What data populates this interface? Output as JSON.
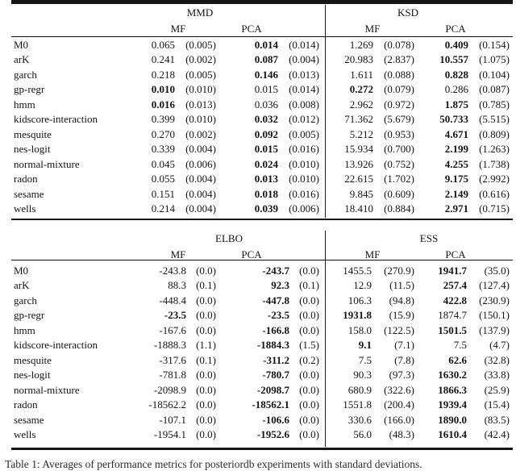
{
  "page": {
    "caption_clipped": "Table 1: Averages of performance metrics for posteriordb experiments with standard deviations."
  },
  "tables": [
    {
      "groups": [
        "MMD",
        "KSD"
      ],
      "subheaders": [
        "MF",
        "PCA",
        "MF",
        "PCA"
      ],
      "rows": [
        {
          "label": "M0",
          "cells": [
            {
              "v": "0.065",
              "s": "(0.005)",
              "b": false
            },
            {
              "v": "0.014",
              "s": "(0.014)",
              "b": true
            },
            {
              "v": "1.269",
              "s": "(0.078)",
              "b": false
            },
            {
              "v": "0.409",
              "s": "(0.154)",
              "b": true
            }
          ]
        },
        {
          "label": "arK",
          "cells": [
            {
              "v": "0.241",
              "s": "(0.002)",
              "b": false
            },
            {
              "v": "0.087",
              "s": "(0.004)",
              "b": true
            },
            {
              "v": "20.983",
              "s": "(2.837)",
              "b": false
            },
            {
              "v": "10.557",
              "s": "(1.075)",
              "b": true
            }
          ]
        },
        {
          "label": "garch",
          "cells": [
            {
              "v": "0.218",
              "s": "(0.005)",
              "b": false
            },
            {
              "v": "0.146",
              "s": "(0.013)",
              "b": true
            },
            {
              "v": "1.611",
              "s": "(0.088)",
              "b": false
            },
            {
              "v": "0.828",
              "s": "(0.104)",
              "b": true
            }
          ]
        },
        {
          "label": "gp-regr",
          "cells": [
            {
              "v": "0.010",
              "s": "(0.010)",
              "b": true
            },
            {
              "v": "0.015",
              "s": "(0.014)",
              "b": false
            },
            {
              "v": "0.272",
              "s": "(0.079)",
              "b": true
            },
            {
              "v": "0.286",
              "s": "(0.087)",
              "b": false
            }
          ]
        },
        {
          "label": "hmm",
          "cells": [
            {
              "v": "0.016",
              "s": "(0.013)",
              "b": true
            },
            {
              "v": "0.036",
              "s": "(0.008)",
              "b": false
            },
            {
              "v": "2.962",
              "s": "(0.972)",
              "b": false
            },
            {
              "v": "1.875",
              "s": "(0.785)",
              "b": true
            }
          ]
        },
        {
          "label": "kidscore-interaction",
          "cells": [
            {
              "v": "0.399",
              "s": "(0.010)",
              "b": false
            },
            {
              "v": "0.032",
              "s": "(0.012)",
              "b": true
            },
            {
              "v": "71.362",
              "s": "(5.679)",
              "b": false
            },
            {
              "v": "50.733",
              "s": "(5.515)",
              "b": true
            }
          ]
        },
        {
          "label": "mesquite",
          "cells": [
            {
              "v": "0.270",
              "s": "(0.002)",
              "b": false
            },
            {
              "v": "0.092",
              "s": "(0.005)",
              "b": true
            },
            {
              "v": "5.212",
              "s": "(0.953)",
              "b": false
            },
            {
              "v": "4.671",
              "s": "(0.809)",
              "b": true
            }
          ]
        },
        {
          "label": "nes-logit",
          "cells": [
            {
              "v": "0.339",
              "s": "(0.004)",
              "b": false
            },
            {
              "v": "0.015",
              "s": "(0.016)",
              "b": true
            },
            {
              "v": "15.934",
              "s": "(0.700)",
              "b": false
            },
            {
              "v": "2.199",
              "s": "(1.263)",
              "b": true
            }
          ]
        },
        {
          "label": "normal-mixture",
          "cells": [
            {
              "v": "0.045",
              "s": "(0.006)",
              "b": false
            },
            {
              "v": "0.024",
              "s": "(0.010)",
              "b": true
            },
            {
              "v": "13.926",
              "s": "(0.752)",
              "b": false
            },
            {
              "v": "4.255",
              "s": "(1.738)",
              "b": true
            }
          ]
        },
        {
          "label": "radon",
          "cells": [
            {
              "v": "0.055",
              "s": "(0.004)",
              "b": false
            },
            {
              "v": "0.013",
              "s": "(0.010)",
              "b": true
            },
            {
              "v": "22.615",
              "s": "(1.702)",
              "b": false
            },
            {
              "v": "9.175",
              "s": "(2.992)",
              "b": true
            }
          ]
        },
        {
          "label": "sesame",
          "cells": [
            {
              "v": "0.151",
              "s": "(0.004)",
              "b": false
            },
            {
              "v": "0.018",
              "s": "(0.016)",
              "b": true
            },
            {
              "v": "9.845",
              "s": "(0.609)",
              "b": false
            },
            {
              "v": "2.149",
              "s": "(0.616)",
              "b": true
            }
          ]
        },
        {
          "label": "wells",
          "cells": [
            {
              "v": "0.214",
              "s": "(0.004)",
              "b": false
            },
            {
              "v": "0.039",
              "s": "(0.006)",
              "b": true
            },
            {
              "v": "18.410",
              "s": "(0.884)",
              "b": false
            },
            {
              "v": "2.971",
              "s": "(0.715)",
              "b": true
            }
          ]
        }
      ]
    },
    {
      "groups": [
        "ELBO",
        "ESS"
      ],
      "subheaders": [
        "MF",
        "PCA",
        "MF",
        "PCA"
      ],
      "rows": [
        {
          "label": "M0",
          "cells": [
            {
              "v": "-243.8",
              "s": "(0.0)",
              "b": false
            },
            {
              "v": "-243.7",
              "s": "(0.0)",
              "b": true
            },
            {
              "v": "1455.5",
              "s": "(270.9)",
              "b": false
            },
            {
              "v": "1941.7",
              "s": "(35.0)",
              "b": true
            }
          ]
        },
        {
          "label": "arK",
          "cells": [
            {
              "v": "88.3",
              "s": "(0.1)",
              "b": false
            },
            {
              "v": "92.3",
              "s": "(0.1)",
              "b": true
            },
            {
              "v": "12.9",
              "s": "(11.5)",
              "b": false
            },
            {
              "v": "257.4",
              "s": "(127.4)",
              "b": true
            }
          ]
        },
        {
          "label": "garch",
          "cells": [
            {
              "v": "-448.4",
              "s": "(0.0)",
              "b": false
            },
            {
              "v": "-447.8",
              "s": "(0.0)",
              "b": true
            },
            {
              "v": "106.3",
              "s": "(94.8)",
              "b": false
            },
            {
              "v": "422.8",
              "s": "(230.9)",
              "b": true
            }
          ]
        },
        {
          "label": "gp-regr",
          "cells": [
            {
              "v": "-23.5",
              "s": "(0.0)",
              "b": true
            },
            {
              "v": "-23.5",
              "s": "(0.0)",
              "b": true
            },
            {
              "v": "1931.8",
              "s": "(15.9)",
              "b": true
            },
            {
              "v": "1874.7",
              "s": "(150.1)",
              "b": false
            }
          ]
        },
        {
          "label": "hmm",
          "cells": [
            {
              "v": "-167.6",
              "s": "(0.0)",
              "b": false
            },
            {
              "v": "-166.8",
              "s": "(0.0)",
              "b": true
            },
            {
              "v": "158.0",
              "s": "(122.5)",
              "b": false
            },
            {
              "v": "1501.5",
              "s": "(137.9)",
              "b": true
            }
          ]
        },
        {
          "label": "kidscore-interaction",
          "cells": [
            {
              "v": "-1888.3",
              "s": "(1.1)",
              "b": false
            },
            {
              "v": "-1884.3",
              "s": "(1.5)",
              "b": true
            },
            {
              "v": "9.1",
              "s": "(7.1)",
              "b": true
            },
            {
              "v": "7.5",
              "s": "(4.7)",
              "b": false
            }
          ]
        },
        {
          "label": "mesquite",
          "cells": [
            {
              "v": "-317.6",
              "s": "(0.1)",
              "b": false
            },
            {
              "v": "-311.2",
              "s": "(0.2)",
              "b": true
            },
            {
              "v": "7.5",
              "s": "(7.8)",
              "b": false
            },
            {
              "v": "62.6",
              "s": "(32.8)",
              "b": true
            }
          ]
        },
        {
          "label": "nes-logit",
          "cells": [
            {
              "v": "-781.8",
              "s": "(0.0)",
              "b": false
            },
            {
              "v": "-780.7",
              "s": "(0.0)",
              "b": true
            },
            {
              "v": "90.3",
              "s": "(97.3)",
              "b": false
            },
            {
              "v": "1630.2",
              "s": "(33.8)",
              "b": true
            }
          ]
        },
        {
          "label": "normal-mixture",
          "cells": [
            {
              "v": "-2098.9",
              "s": "(0.0)",
              "b": false
            },
            {
              "v": "-2098.7",
              "s": "(0.0)",
              "b": true
            },
            {
              "v": "680.9",
              "s": "(322.6)",
              "b": false
            },
            {
              "v": "1866.3",
              "s": "(25.9)",
              "b": true
            }
          ]
        },
        {
          "label": "radon",
          "cells": [
            {
              "v": "-18562.2",
              "s": "(0.0)",
              "b": false
            },
            {
              "v": "-18562.1",
              "s": "(0.0)",
              "b": true
            },
            {
              "v": "1551.8",
              "s": "(200.4)",
              "b": false
            },
            {
              "v": "1939.4",
              "s": "(15.4)",
              "b": true
            }
          ]
        },
        {
          "label": "sesame",
          "cells": [
            {
              "v": "-107.1",
              "s": "(0.0)",
              "b": false
            },
            {
              "v": "-106.6",
              "s": "(0.0)",
              "b": true
            },
            {
              "v": "330.6",
              "s": "(166.0)",
              "b": false
            },
            {
              "v": "1890.0",
              "s": "(83.5)",
              "b": true
            }
          ]
        },
        {
          "label": "wells",
          "cells": [
            {
              "v": "-1954.1",
              "s": "(0.0)",
              "b": false
            },
            {
              "v": "-1952.6",
              "s": "(0.0)",
              "b": true
            },
            {
              "v": "56.0",
              "s": "(48.3)",
              "b": false
            },
            {
              "v": "1610.4",
              "s": "(42.4)",
              "b": true
            }
          ]
        }
      ]
    }
  ]
}
